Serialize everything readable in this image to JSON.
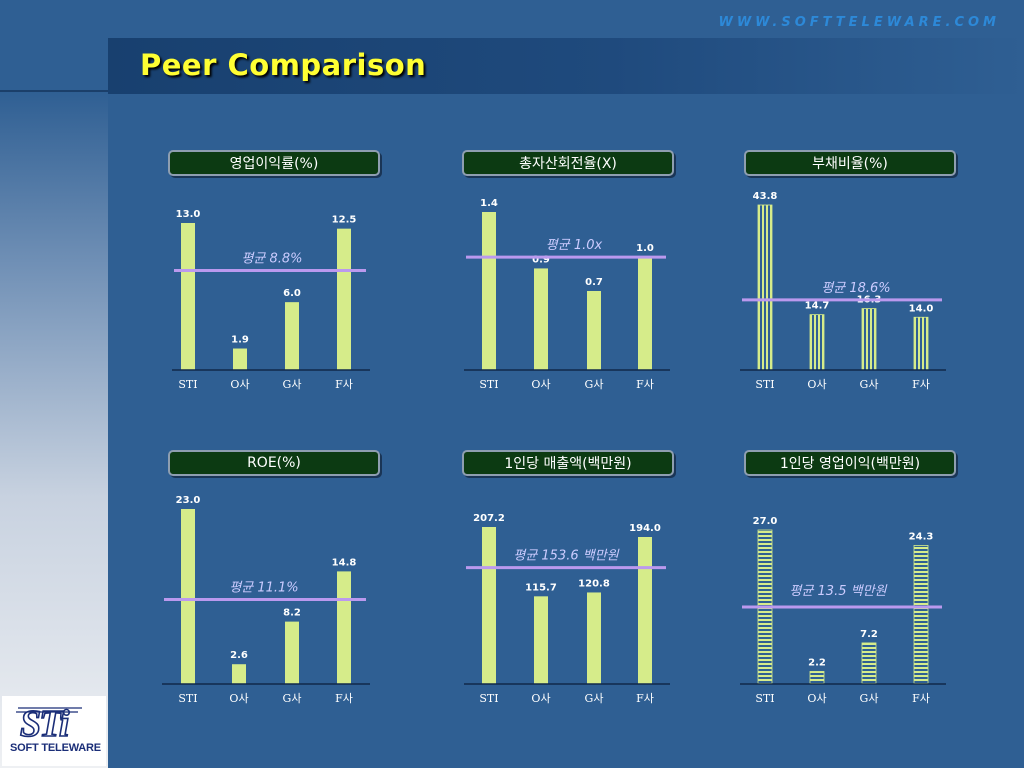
{
  "website": "WWW.SOFTTELEWARE.COM",
  "page_title": "Peer Comparison",
  "logo": {
    "mark": "STi",
    "text": "SOFT TELEWARE"
  },
  "colors": {
    "background": "#2f5f93",
    "bar": "#d6ec8a",
    "average_line": "#bb99ee",
    "average_text": "#ccccff",
    "title_box": "#0c3a12",
    "title_text": "#ffff33"
  },
  "chart_data": [
    {
      "type": "bar",
      "title": "영업이익률(%)",
      "categories": [
        "STI",
        "O사",
        "G사",
        "F사"
      ],
      "values": [
        13.0,
        1.9,
        6.0,
        12.5
      ],
      "value_labels": [
        "13.0",
        "1.9",
        "6.0",
        "12.5"
      ],
      "ylim": [
        0,
        13.0
      ],
      "average": 8.8,
      "average_label": "평균 8.8%",
      "bar_pattern": "solid"
    },
    {
      "type": "bar",
      "title": "총자산회전율(X)",
      "categories": [
        "STI",
        "O사",
        "G사",
        "F사"
      ],
      "values": [
        1.4,
        0.9,
        0.7,
        1.0
      ],
      "value_labels": [
        "1.4",
        "0.9",
        "0.7",
        "1.0"
      ],
      "ylim": [
        0,
        1.4
      ],
      "average": 1.0,
      "average_label": "평균 1.0x",
      "bar_pattern": "solid"
    },
    {
      "type": "bar",
      "title": "부채비율(%)",
      "categories": [
        "STI",
        "O사",
        "G사",
        "F사"
      ],
      "values": [
        43.8,
        14.7,
        16.3,
        14.0
      ],
      "value_labels": [
        "43.8",
        "14.7",
        "16.3",
        "14.0"
      ],
      "ylim": [
        0,
        43.8
      ],
      "average": 18.6,
      "average_label": "평균 18.6%",
      "bar_pattern": "vertical-stripes"
    },
    {
      "type": "bar",
      "title": "ROE(%)",
      "categories": [
        "STI",
        "O사",
        "G사",
        "F사"
      ],
      "values": [
        23.0,
        2.6,
        8.2,
        14.8
      ],
      "value_labels": [
        "23.0",
        "2.6",
        "8.2",
        "14.8"
      ],
      "ylim": [
        0,
        23.0
      ],
      "average": 11.1,
      "average_label": "평균 11.1%",
      "bar_pattern": "solid"
    },
    {
      "type": "bar",
      "title": "1인당 매출액(백만원)",
      "categories": [
        "STI",
        "O사",
        "G사",
        "F사"
      ],
      "values": [
        207.2,
        115.7,
        120.8,
        194.0
      ],
      "value_labels": [
        "207.2",
        "115.7",
        "120.8",
        "194.0"
      ],
      "ylim": [
        0,
        207.2
      ],
      "average": 153.6,
      "average_label": "평균 153.6 백만원",
      "bar_pattern": "solid"
    },
    {
      "type": "bar",
      "title": "1인당 영업이익(백만원)",
      "categories": [
        "STI",
        "O사",
        "G사",
        "F사"
      ],
      "values": [
        27.0,
        2.2,
        7.2,
        24.3
      ],
      "value_labels": [
        "27.0",
        "2.2",
        "7.2",
        "24.3"
      ],
      "ylim": [
        0,
        27.0
      ],
      "average": 13.5,
      "average_label": "평균 13.5 백만원",
      "bar_pattern": "horizontal-stripes"
    }
  ]
}
